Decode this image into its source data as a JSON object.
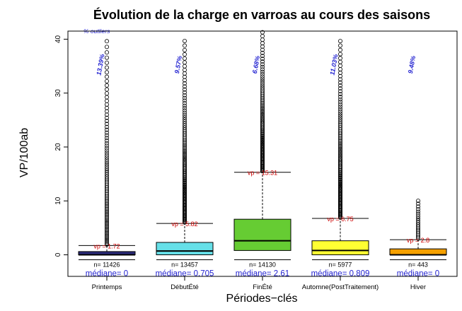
{
  "chart_data": {
    "type": "boxplot",
    "title": "Évolution de la charge en varroas au cours des saisons",
    "xlabel": "Périodes−clés",
    "ylabel": "VP/100ab",
    "ylim": [
      -4,
      41.5
    ],
    "yticks": [
      0,
      10,
      20,
      30,
      40
    ],
    "legend_note": "% outliers",
    "n_prefix": "n= ",
    "vp_prefix": "vp = ",
    "median_prefix": "médiane= ",
    "categories": [
      {
        "name": "Printemps",
        "color": "#2a2a7a",
        "q1": 0,
        "median": 0,
        "q3": 0.6,
        "whisker_low": 0,
        "whisker_high": 1.72,
        "vp": "1.72",
        "n": "11426",
        "median_label": "0",
        "outlier_pct": "13.39%",
        "outliers_from": 1.9,
        "outliers_to": 40,
        "outlier_density": 0.6
      },
      {
        "name": "DébutÉté",
        "color": "#66e0e8",
        "q1": 0,
        "median": 0.705,
        "q3": 2.3,
        "whisker_low": 0,
        "whisker_high": 5.82,
        "vp": "5.82",
        "n": "13457",
        "median_label": "0.705",
        "outlier_pct": "9.57%",
        "outliers_from": 6.0,
        "outliers_to": 40.5,
        "outlier_density": 1.0
      },
      {
        "name": "FinÉté",
        "color": "#66cc33",
        "q1": 0.8,
        "median": 2.61,
        "q3": 6.6,
        "whisker_low": 0,
        "whisker_high": 15.31,
        "vp": "15.31",
        "n": "14130",
        "median_label": "2.61",
        "outlier_pct": "6.68%",
        "outliers_from": 15.5,
        "outliers_to": 41.5,
        "outlier_density": 1.0
      },
      {
        "name": "Automne(PostTraitement)",
        "color": "#ffff33",
        "q1": 0,
        "median": 0.809,
        "q3": 2.6,
        "whisker_low": 0,
        "whisker_high": 6.75,
        "vp": "6.75",
        "n": "5977",
        "median_label": "0.809",
        "outlier_pct": "11.03%",
        "outliers_from": 6.9,
        "outliers_to": 40.5,
        "outlier_density": 1.0
      },
      {
        "name": "Hiver",
        "color": "#f5a000",
        "q1": 0,
        "median": 0,
        "q3": 1.1,
        "whisker_low": 0,
        "whisker_high": 2.8,
        "vp": "2.8",
        "n": "443",
        "median_label": "0",
        "outlier_pct": "9.48%",
        "outliers_from": 3.0,
        "outliers_to": 10.2,
        "outlier_density": 0.5
      }
    ],
    "colors": {
      "vp": "#cc0000",
      "median_text": "#1f1fd0",
      "pct_text": "#1f1fd0",
      "axis": "#000000"
    }
  }
}
